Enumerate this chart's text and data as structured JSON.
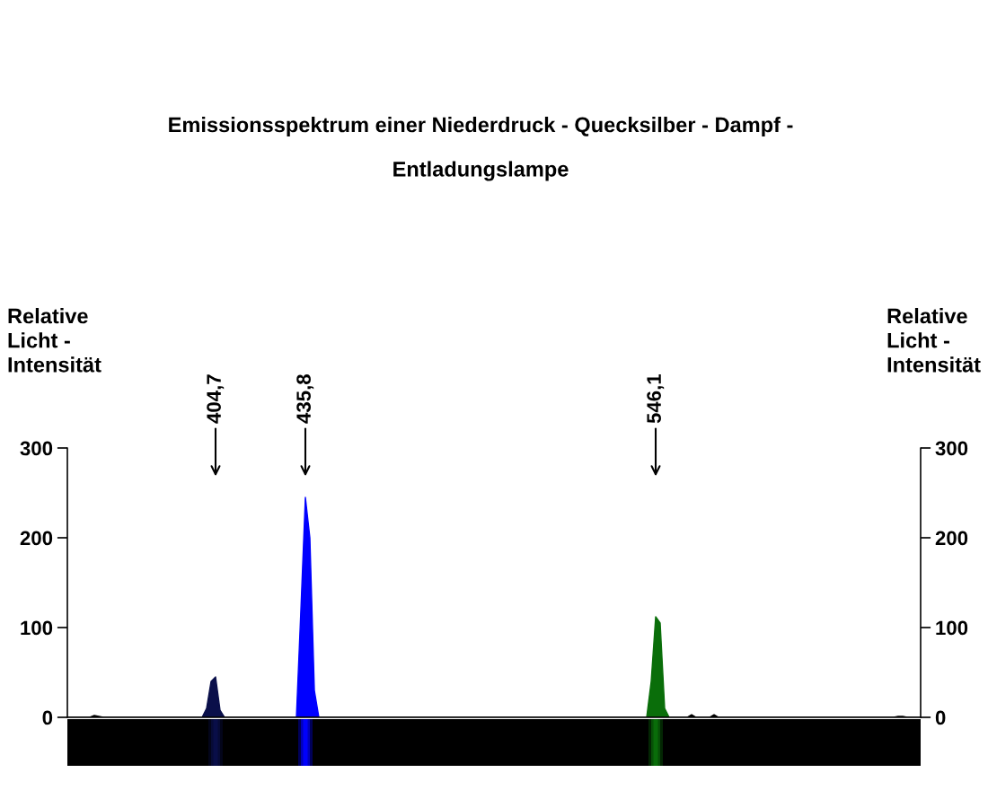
{
  "chart_data": {
    "type": "area",
    "title": "Emissionsspektrum einer Niederdruck - Quecksilber - Dampf -\nEntladungslampe",
    "ylabel": "Relative\nLicht -\nIntensität",
    "y2label": "Relative\nLicht -\nIntensität",
    "categories": [
      null,
      null,
      null,
      null,
      null,
      null,
      null,
      null,
      null,
      null,
      null,
      null,
      null,
      null,
      null,
      null,
      null,
      null,
      null,
      null,
      null,
      null,
      null,
      null,
      null,
      null,
      null,
      null,
      null,
      null,
      null,
      null,
      null,
      null,
      null,
      null,
      null,
      null,
      null,
      null,
      null,
      null,
      null,
      null,
      null,
      null,
      null,
      null,
      null,
      null,
      null,
      null,
      null,
      null,
      null,
      null,
      null,
      null,
      null,
      null,
      null,
      null,
      null,
      null,
      null,
      null,
      null,
      null,
      null,
      null,
      null,
      null,
      null,
      null,
      null,
      null,
      null,
      null,
      null,
      null,
      null,
      null,
      null,
      null,
      null,
      null,
      null,
      null,
      null,
      null,
      null,
      null,
      null,
      null,
      null,
      null,
      null,
      null,
      null,
      null,
      null,
      null,
      null,
      null,
      null,
      null,
      null,
      null,
      null,
      null,
      null,
      null,
      null,
      null,
      null,
      null,
      null,
      null,
      null,
      null,
      null,
      null,
      null,
      null,
      null,
      null,
      null,
      null,
      null,
      null,
      null,
      null,
      null,
      null,
      null,
      null,
      null,
      null,
      null,
      null,
      null,
      null,
      null,
      null,
      null,
      null,
      null,
      null,
      null,
      null,
      null,
      null,
      null,
      null,
      null,
      null,
      null,
      null,
      null,
      null,
      null,
      null,
      null,
      null,
      null,
      null,
      null,
      null,
      null,
      null,
      null,
      null,
      null,
      null,
      null,
      null,
      null,
      null,
      null,
      null,
      null,
      null,
      null,
      null,
      null,
      null,
      null,
      null,
      null,
      null,
      null
    ],
    "series": [
      {
        "color": "#0a0f4a",
        "values": [
          null,
          null,
          null,
          null,
          null,
          null,
          null,
          null,
          null,
          null,
          null,
          null,
          null,
          null,
          null,
          null,
          null,
          null,
          null,
          null,
          null,
          null,
          null,
          null,
          null,
          null,
          null,
          null,
          null,
          null,
          0,
          10,
          40,
          45,
          8,
          0,
          null,
          null,
          null,
          null,
          null,
          null,
          null,
          null,
          null,
          null,
          null,
          null,
          null,
          null,
          null,
          null,
          null,
          null,
          null,
          null,
          null,
          null,
          null,
          null,
          null,
          null,
          null,
          null,
          null,
          null,
          null,
          null,
          null,
          null,
          null,
          null,
          null,
          null,
          null,
          null,
          null,
          null,
          null,
          null,
          null,
          null,
          null,
          null,
          null,
          null,
          null,
          null,
          null,
          null,
          null,
          null,
          null,
          null,
          null,
          null,
          null,
          null,
          null,
          null,
          null,
          null,
          null,
          null,
          null,
          null,
          null,
          null,
          null,
          null,
          null,
          null,
          null,
          null,
          null,
          null,
          null,
          null,
          null,
          null,
          null,
          null,
          null,
          null,
          null,
          null,
          null,
          null,
          null,
          null,
          null,
          null,
          null,
          null,
          null,
          null,
          null,
          null,
          null,
          null,
          null,
          null,
          null,
          null,
          null,
          null,
          null,
          null,
          null,
          null,
          null,
          null,
          null,
          null,
          null,
          null,
          null,
          null,
          null,
          null,
          null,
          null,
          null,
          null,
          null,
          null,
          null,
          null,
          null,
          null,
          null,
          null,
          null,
          null,
          null,
          null,
          null,
          null,
          null,
          null,
          null,
          null,
          null,
          null,
          null,
          null,
          null,
          null,
          null,
          null,
          null
        ]
      },
      {
        "color": "#0000ff",
        "values": [
          null,
          null,
          null,
          null,
          null,
          null,
          null,
          null,
          null,
          null,
          null,
          null,
          null,
          null,
          null,
          null,
          null,
          null,
          null,
          null,
          null,
          null,
          null,
          null,
          null,
          null,
          null,
          null,
          null,
          null,
          null,
          null,
          null,
          null,
          null,
          null,
          null,
          null,
          null,
          null,
          null,
          null,
          null,
          null,
          null,
          null,
          null,
          null,
          null,
          null,
          null,
          0,
          120,
          245,
          200,
          30,
          0,
          null,
          null,
          null,
          null,
          null,
          null,
          null,
          null,
          null,
          null,
          null,
          null,
          null,
          null,
          null,
          null,
          null,
          null,
          null,
          null,
          null,
          null,
          null,
          null,
          null,
          null,
          null,
          null,
          null,
          null,
          null,
          null,
          null,
          null,
          null,
          null,
          null,
          null,
          null,
          null,
          null,
          null,
          null,
          null,
          null,
          null,
          null,
          null,
          null,
          null,
          null,
          null,
          null,
          null,
          null,
          null,
          null,
          null,
          null,
          null,
          null,
          null,
          null,
          null,
          null,
          null,
          null,
          null,
          null,
          null,
          null,
          null,
          null,
          null,
          null,
          null,
          null,
          null,
          null,
          null,
          null,
          null,
          null,
          null,
          null,
          null,
          null,
          null,
          null,
          null,
          null,
          null,
          null,
          null,
          null,
          null,
          null,
          null,
          null,
          null,
          null,
          null,
          null,
          null,
          null,
          null,
          null,
          null,
          null,
          null,
          null,
          null,
          null,
          null,
          null,
          null,
          null,
          null,
          null,
          null,
          null,
          null,
          null,
          null,
          null,
          null,
          null,
          null,
          null,
          null,
          null,
          null,
          null,
          null
        ]
      },
      {
        "color": "#0a6e0a",
        "values": [
          null,
          null,
          null,
          null,
          null,
          null,
          null,
          null,
          null,
          null,
          null,
          null,
          null,
          null,
          null,
          null,
          null,
          null,
          null,
          null,
          null,
          null,
          null,
          null,
          null,
          null,
          null,
          null,
          null,
          null,
          null,
          null,
          null,
          null,
          null,
          null,
          null,
          null,
          null,
          null,
          null,
          null,
          null,
          null,
          null,
          null,
          null,
          null,
          null,
          null,
          null,
          null,
          null,
          null,
          null,
          null,
          null,
          null,
          null,
          null,
          null,
          null,
          null,
          null,
          null,
          null,
          null,
          null,
          null,
          null,
          null,
          null,
          null,
          null,
          null,
          null,
          null,
          null,
          null,
          null,
          null,
          null,
          null,
          null,
          null,
          null,
          null,
          null,
          null,
          null,
          null,
          null,
          null,
          null,
          null,
          null,
          null,
          null,
          null,
          null,
          null,
          null,
          null,
          null,
          null,
          null,
          null,
          null,
          null,
          null,
          null,
          null,
          null,
          null,
          null,
          null,
          null,
          null,
          null,
          null,
          null,
          null,
          null,
          null,
          null,
          null,
          null,
          null,
          null,
          0,
          40,
          112,
          105,
          10,
          0,
          null,
          null,
          null,
          null,
          null,
          null,
          null,
          null,
          null,
          null,
          null,
          null,
          null,
          null,
          null,
          null,
          null,
          null,
          null,
          null,
          null,
          null,
          null,
          null,
          null,
          null,
          null,
          null,
          null,
          null,
          null,
          null,
          null,
          null,
          null,
          null,
          null,
          null,
          null,
          null,
          null,
          null,
          null,
          null,
          null,
          null,
          null,
          null,
          null,
          null,
          null,
          null,
          null,
          null,
          null,
          null
        ]
      },
      {
        "color": "#000000",
        "values": [
          0,
          0,
          0,
          0,
          0,
          0,
          2,
          1,
          0,
          0,
          0,
          0,
          0,
          0,
          0,
          0,
          0,
          0,
          0,
          0,
          0,
          0,
          0,
          0,
          0,
          0,
          0,
          0,
          0,
          0,
          0,
          null,
          null,
          null,
          null,
          0,
          0,
          0,
          0,
          0,
          0,
          0,
          0,
          0,
          0,
          0,
          0,
          0,
          0,
          0,
          0,
          0,
          null,
          null,
          null,
          null,
          0,
          0,
          0,
          0,
          0,
          0,
          0,
          0,
          0,
          0,
          0,
          0,
          0,
          0,
          0,
          0,
          0,
          0,
          0,
          0,
          0,
          0,
          0,
          0,
          0,
          0,
          0,
          0,
          0,
          0,
          0,
          0,
          0,
          0,
          0,
          0,
          0,
          0,
          0,
          0,
          0,
          0,
          0,
          0,
          0,
          0,
          0,
          0,
          0,
          0,
          0,
          0,
          0,
          0,
          0,
          0,
          0,
          0,
          0,
          0,
          0,
          0,
          0,
          0,
          0,
          0,
          0,
          0,
          0,
          0,
          0,
          0,
          0,
          0,
          null,
          null,
          null,
          null,
          0,
          0,
          0,
          0,
          0,
          3,
          0,
          0,
          0,
          0,
          3,
          0,
          0,
          0,
          0,
          0,
          0,
          0,
          0,
          0,
          0,
          0,
          0,
          0,
          0,
          0,
          0,
          0,
          0,
          0,
          0,
          0,
          0,
          0,
          0,
          0,
          0,
          0,
          0,
          0,
          0,
          0,
          0,
          0,
          0,
          0,
          0,
          0,
          0,
          0,
          0,
          1,
          1,
          0,
          0,
          0,
          0
        ]
      }
    ],
    "annotations": [
      "404,7",
      "435,8",
      "546,1"
    ],
    "ylim": [
      0,
      300
    ],
    "yticks": [
      0,
      100,
      200,
      300
    ],
    "y2lim": [
      0,
      300
    ],
    "y2ticks": [
      0,
      100,
      200,
      300
    ],
    "tick_labels": "y",
    "grid": false
  }
}
